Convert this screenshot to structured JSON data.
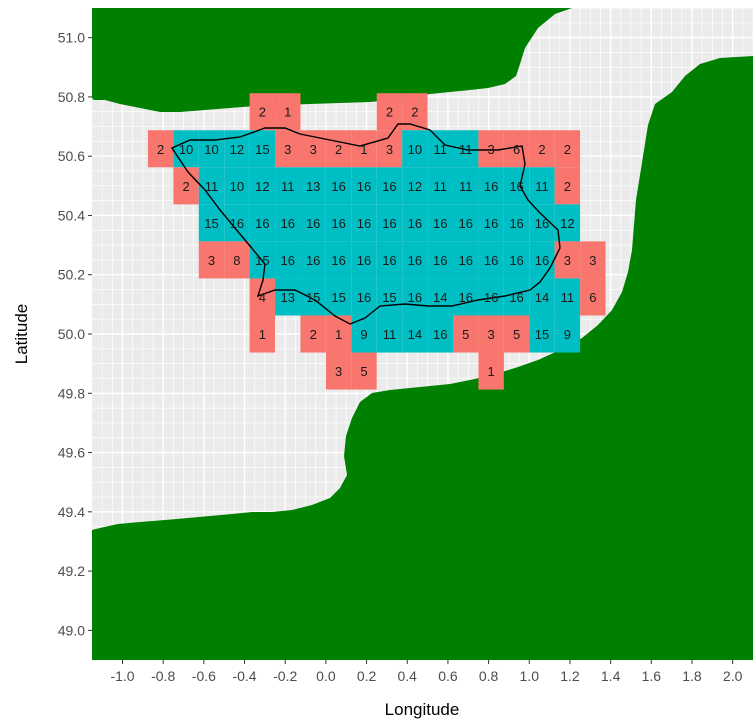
{
  "colors": {
    "land": "#008000",
    "sea_panel": "#ebebeb",
    "grid_minor": "#ffffff",
    "cell_red": "#f8766d",
    "cell_cyan": "#00bfc4",
    "outline": "#000000"
  },
  "chart_data": {
    "type": "heatmap",
    "xlabel": "Longitude",
    "ylabel": "Latitude",
    "xlim": [
      -1.15,
      2.1
    ],
    "ylim": [
      48.9,
      51.1
    ],
    "x_ticks": [
      "-1.0",
      "-0.8",
      "-0.6",
      "-0.4",
      "-0.2",
      "0.0",
      "0.2",
      "0.4",
      "0.6",
      "0.8",
      "1.0",
      "1.2",
      "1.4",
      "1.6",
      "1.8",
      "2.0"
    ],
    "y_ticks": [
      "49.0",
      "49.2",
      "49.4",
      "49.6",
      "49.8",
      "50.0",
      "50.2",
      "50.4",
      "50.6",
      "50.8",
      "51.0"
    ],
    "cell_size": 0.125,
    "cells": [
      {
        "lon": -0.3125,
        "lat": 50.75,
        "label": "2",
        "class": "red"
      },
      {
        "lon": -0.1875,
        "lat": 50.75,
        "label": "1",
        "class": "red"
      },
      {
        "lon": 0.3125,
        "lat": 50.75,
        "label": "2",
        "class": "red"
      },
      {
        "lon": 0.4375,
        "lat": 50.75,
        "label": "2",
        "class": "red"
      },
      {
        "lon": -0.8125,
        "lat": 50.625,
        "label": "2",
        "class": "red"
      },
      {
        "lon": -0.6875,
        "lat": 50.625,
        "label": "10",
        "class": "cyan"
      },
      {
        "lon": -0.5625,
        "lat": 50.625,
        "label": "10",
        "class": "cyan"
      },
      {
        "lon": -0.4375,
        "lat": 50.625,
        "label": "12",
        "class": "cyan"
      },
      {
        "lon": -0.3125,
        "lat": 50.625,
        "label": "15",
        "class": "cyan"
      },
      {
        "lon": -0.1875,
        "lat": 50.625,
        "label": "3",
        "class": "red"
      },
      {
        "lon": -0.0625,
        "lat": 50.625,
        "label": "3",
        "class": "red"
      },
      {
        "lon": 0.0625,
        "lat": 50.625,
        "label": "2",
        "class": "red"
      },
      {
        "lon": 0.1875,
        "lat": 50.625,
        "label": "1",
        "class": "red"
      },
      {
        "lon": 0.3125,
        "lat": 50.625,
        "label": "3",
        "class": "red"
      },
      {
        "lon": 0.4375,
        "lat": 50.625,
        "label": "10",
        "class": "cyan"
      },
      {
        "lon": 0.5625,
        "lat": 50.625,
        "label": "11",
        "class": "cyan"
      },
      {
        "lon": 0.6875,
        "lat": 50.625,
        "label": "11",
        "class": "cyan"
      },
      {
        "lon": 0.8125,
        "lat": 50.625,
        "label": "3",
        "class": "red"
      },
      {
        "lon": 0.9375,
        "lat": 50.625,
        "label": "6",
        "class": "red"
      },
      {
        "lon": 1.0625,
        "lat": 50.625,
        "label": "2",
        "class": "red"
      },
      {
        "lon": 1.1875,
        "lat": 50.625,
        "label": "2",
        "class": "red"
      },
      {
        "lon": -0.6875,
        "lat": 50.5,
        "label": "2",
        "class": "red"
      },
      {
        "lon": -0.5625,
        "lat": 50.5,
        "label": "11",
        "class": "cyan"
      },
      {
        "lon": -0.4375,
        "lat": 50.5,
        "label": "10",
        "class": "cyan"
      },
      {
        "lon": -0.3125,
        "lat": 50.5,
        "label": "12",
        "class": "cyan"
      },
      {
        "lon": -0.1875,
        "lat": 50.5,
        "label": "11",
        "class": "cyan"
      },
      {
        "lon": -0.0625,
        "lat": 50.5,
        "label": "13",
        "class": "cyan"
      },
      {
        "lon": 0.0625,
        "lat": 50.5,
        "label": "16",
        "class": "cyan"
      },
      {
        "lon": 0.1875,
        "lat": 50.5,
        "label": "16",
        "class": "cyan"
      },
      {
        "lon": 0.3125,
        "lat": 50.5,
        "label": "16",
        "class": "cyan"
      },
      {
        "lon": 0.4375,
        "lat": 50.5,
        "label": "12",
        "class": "cyan"
      },
      {
        "lon": 0.5625,
        "lat": 50.5,
        "label": "11",
        "class": "cyan"
      },
      {
        "lon": 0.6875,
        "lat": 50.5,
        "label": "11",
        "class": "cyan"
      },
      {
        "lon": 0.8125,
        "lat": 50.5,
        "label": "16",
        "class": "cyan"
      },
      {
        "lon": 0.9375,
        "lat": 50.5,
        "label": "16",
        "class": "cyan"
      },
      {
        "lon": 1.0625,
        "lat": 50.5,
        "label": "11",
        "class": "cyan"
      },
      {
        "lon": 1.1875,
        "lat": 50.5,
        "label": "2",
        "class": "red"
      },
      {
        "lon": -0.5625,
        "lat": 50.375,
        "label": "15",
        "class": "cyan"
      },
      {
        "lon": -0.4375,
        "lat": 50.375,
        "label": "16",
        "class": "cyan"
      },
      {
        "lon": -0.3125,
        "lat": 50.375,
        "label": "16",
        "class": "cyan"
      },
      {
        "lon": -0.1875,
        "lat": 50.375,
        "label": "16",
        "class": "cyan"
      },
      {
        "lon": -0.0625,
        "lat": 50.375,
        "label": "16",
        "class": "cyan"
      },
      {
        "lon": 0.0625,
        "lat": 50.375,
        "label": "16",
        "class": "cyan"
      },
      {
        "lon": 0.1875,
        "lat": 50.375,
        "label": "16",
        "class": "cyan"
      },
      {
        "lon": 0.3125,
        "lat": 50.375,
        "label": "16",
        "class": "cyan"
      },
      {
        "lon": 0.4375,
        "lat": 50.375,
        "label": "16",
        "class": "cyan"
      },
      {
        "lon": 0.5625,
        "lat": 50.375,
        "label": "16",
        "class": "cyan"
      },
      {
        "lon": 0.6875,
        "lat": 50.375,
        "label": "16",
        "class": "cyan"
      },
      {
        "lon": 0.8125,
        "lat": 50.375,
        "label": "16",
        "class": "cyan"
      },
      {
        "lon": 0.9375,
        "lat": 50.375,
        "label": "16",
        "class": "cyan"
      },
      {
        "lon": 1.0625,
        "lat": 50.375,
        "label": "16",
        "class": "cyan"
      },
      {
        "lon": 1.1875,
        "lat": 50.375,
        "label": "12",
        "class": "cyan"
      },
      {
        "lon": -0.5625,
        "lat": 50.25,
        "label": "3",
        "class": "red"
      },
      {
        "lon": -0.4375,
        "lat": 50.25,
        "label": "8",
        "class": "red"
      },
      {
        "lon": -0.3125,
        "lat": 50.25,
        "label": "15",
        "class": "cyan"
      },
      {
        "lon": -0.1875,
        "lat": 50.25,
        "label": "16",
        "class": "cyan"
      },
      {
        "lon": -0.0625,
        "lat": 50.25,
        "label": "16",
        "class": "cyan"
      },
      {
        "lon": 0.0625,
        "lat": 50.25,
        "label": "16",
        "class": "cyan"
      },
      {
        "lon": 0.1875,
        "lat": 50.25,
        "label": "16",
        "class": "cyan"
      },
      {
        "lon": 0.3125,
        "lat": 50.25,
        "label": "16",
        "class": "cyan"
      },
      {
        "lon": 0.4375,
        "lat": 50.25,
        "label": "16",
        "class": "cyan"
      },
      {
        "lon": 0.5625,
        "lat": 50.25,
        "label": "16",
        "class": "cyan"
      },
      {
        "lon": 0.6875,
        "lat": 50.25,
        "label": "16",
        "class": "cyan"
      },
      {
        "lon": 0.8125,
        "lat": 50.25,
        "label": "16",
        "class": "cyan"
      },
      {
        "lon": 0.9375,
        "lat": 50.25,
        "label": "16",
        "class": "cyan"
      },
      {
        "lon": 1.0625,
        "lat": 50.25,
        "label": "16",
        "class": "cyan"
      },
      {
        "lon": 1.1875,
        "lat": 50.25,
        "label": "3",
        "class": "red"
      },
      {
        "lon": 1.3125,
        "lat": 50.25,
        "label": "3",
        "class": "red"
      },
      {
        "lon": -0.3125,
        "lat": 50.125,
        "label": "4",
        "class": "red"
      },
      {
        "lon": -0.1875,
        "lat": 50.125,
        "label": "13",
        "class": "cyan"
      },
      {
        "lon": -0.0625,
        "lat": 50.125,
        "label": "15",
        "class": "cyan"
      },
      {
        "lon": 0.0625,
        "lat": 50.125,
        "label": "15",
        "class": "cyan"
      },
      {
        "lon": 0.1875,
        "lat": 50.125,
        "label": "16",
        "class": "cyan"
      },
      {
        "lon": 0.3125,
        "lat": 50.125,
        "label": "15",
        "class": "cyan"
      },
      {
        "lon": 0.4375,
        "lat": 50.125,
        "label": "16",
        "class": "cyan"
      },
      {
        "lon": 0.5625,
        "lat": 50.125,
        "label": "14",
        "class": "cyan"
      },
      {
        "lon": 0.6875,
        "lat": 50.125,
        "label": "16",
        "class": "cyan"
      },
      {
        "lon": 0.8125,
        "lat": 50.125,
        "label": "16",
        "class": "cyan"
      },
      {
        "lon": 0.9375,
        "lat": 50.125,
        "label": "16",
        "class": "cyan"
      },
      {
        "lon": 1.0625,
        "lat": 50.125,
        "label": "14",
        "class": "cyan"
      },
      {
        "lon": 1.1875,
        "lat": 50.125,
        "label": "11",
        "class": "cyan"
      },
      {
        "lon": 1.3125,
        "lat": 50.125,
        "label": "6",
        "class": "red"
      },
      {
        "lon": -0.3125,
        "lat": 50.0,
        "label": "1",
        "class": "red"
      },
      {
        "lon": -0.0625,
        "lat": 50.0,
        "label": "2",
        "class": "red"
      },
      {
        "lon": 0.0625,
        "lat": 50.0,
        "label": "1",
        "class": "red"
      },
      {
        "lon": 0.1875,
        "lat": 50.0,
        "label": "9",
        "class": "cyan"
      },
      {
        "lon": 0.3125,
        "lat": 50.0,
        "label": "11",
        "class": "cyan"
      },
      {
        "lon": 0.4375,
        "lat": 50.0,
        "label": "14",
        "class": "cyan"
      },
      {
        "lon": 0.5625,
        "lat": 50.0,
        "label": "16",
        "class": "cyan"
      },
      {
        "lon": 0.6875,
        "lat": 50.0,
        "label": "5",
        "class": "red"
      },
      {
        "lon": 0.8125,
        "lat": 50.0,
        "label": "3",
        "class": "red"
      },
      {
        "lon": 0.9375,
        "lat": 50.0,
        "label": "5",
        "class": "red"
      },
      {
        "lon": 1.0625,
        "lat": 50.0,
        "label": "15",
        "class": "cyan"
      },
      {
        "lon": 1.1875,
        "lat": 50.0,
        "label": "9",
        "class": "cyan"
      },
      {
        "lon": 0.0625,
        "lat": 49.875,
        "label": "3",
        "class": "red"
      },
      {
        "lon": 0.1875,
        "lat": 49.875,
        "label": "5",
        "class": "red"
      },
      {
        "lon": 0.8125,
        "lat": 49.875,
        "label": "1",
        "class": "red"
      }
    ]
  }
}
